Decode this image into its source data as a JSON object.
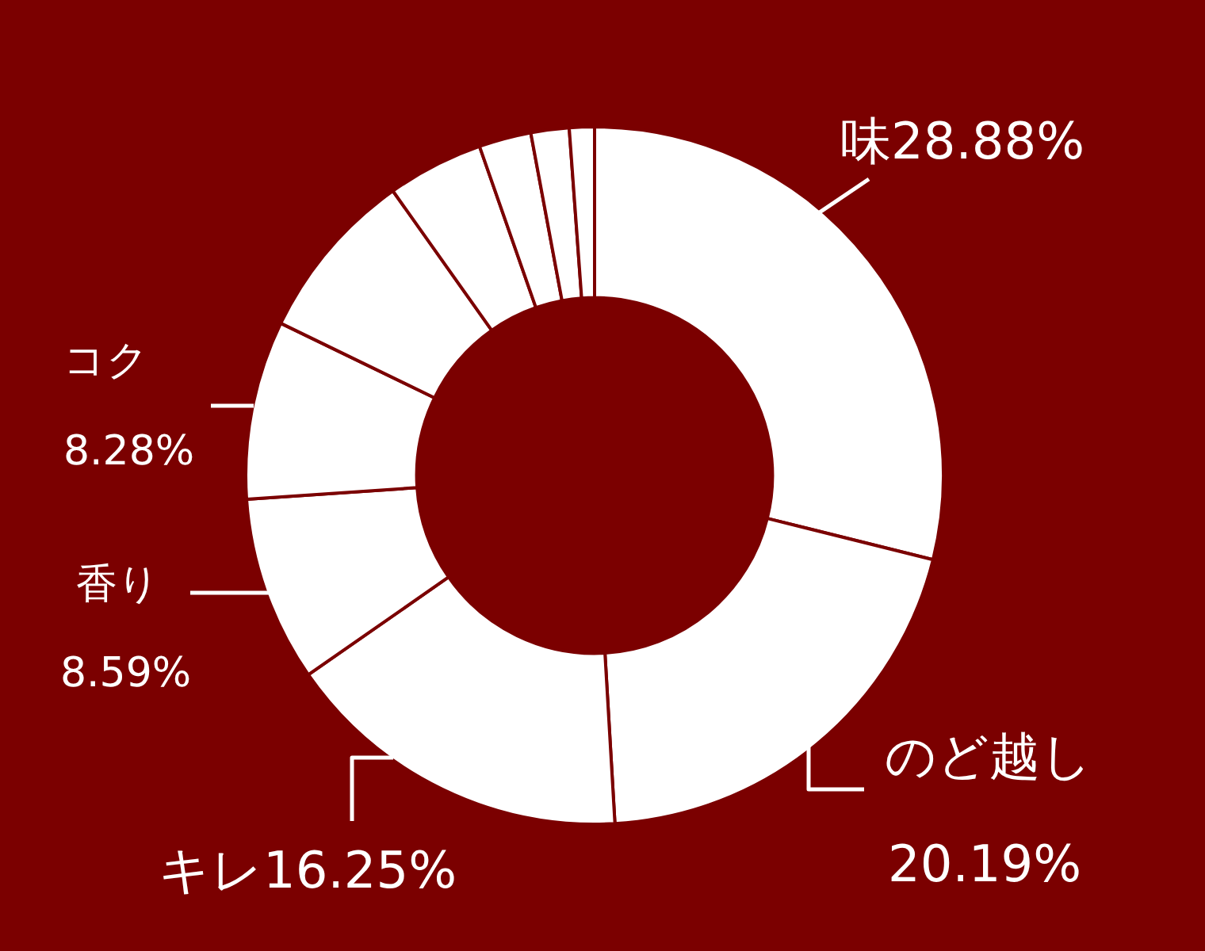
{
  "chart_data": {
    "type": "donut",
    "categories": [
      "味",
      "のど越し",
      "キレ",
      "香り",
      "コク",
      null,
      null,
      null,
      null,
      null
    ],
    "values": [
      28.88,
      20.19,
      16.25,
      8.59,
      8.28,
      8.0,
      4.46,
      2.42,
      1.77,
      1.16
    ],
    "colors": [
      "#ffffff",
      "#ffffff",
      "#ffffff",
      "#ffffff",
      "#ffffff",
      "#ffffff",
      "#ffffff",
      "#ffffff",
      "#ffffff",
      "#ffffff"
    ],
    "value_labels": [
      "28.88%",
      "20.19%",
      "16.25%",
      "8.59%",
      "8.28%",
      null,
      null,
      null,
      null,
      null
    ]
  }
}
